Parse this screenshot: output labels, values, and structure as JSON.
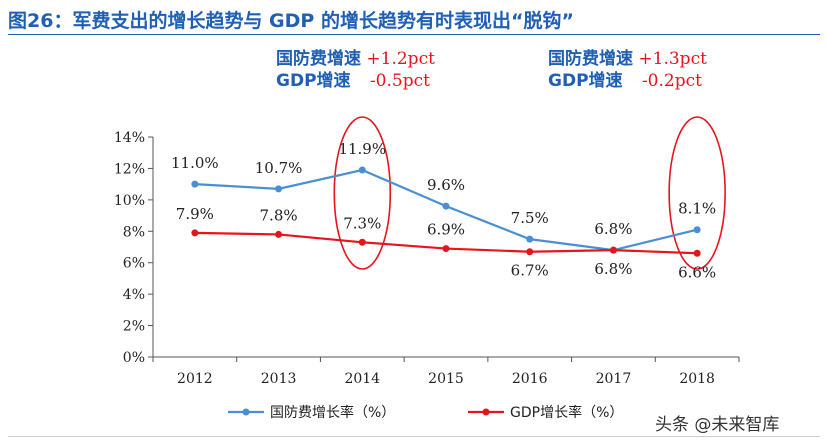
{
  "title": "图26：军费支出的增长趋势与 GDP 的增长趋势有时表现出“脱钩”",
  "annotations": [
    {
      "line1_label": "国防费增速",
      "line1_value": "+1.2pct",
      "line2_label": "GDP增速",
      "line2_value": "-0.5pct"
    },
    {
      "line1_label": "国防费增速",
      "line1_value": "+1.3pct",
      "line2_label": "GDP增速",
      "line2_value": "-0.2pct"
    }
  ],
  "watermark": "头条 @未来智库",
  "chart_data": {
    "type": "line",
    "categories": [
      "2012",
      "2013",
      "2014",
      "2015",
      "2016",
      "2017",
      "2018"
    ],
    "ylim": [
      0,
      14
    ],
    "y_ticks": [
      "0%",
      "2%",
      "4%",
      "6%",
      "8%",
      "10%",
      "12%",
      "14%"
    ],
    "grid": false,
    "legend_position": "bottom",
    "series": [
      {
        "name": "国防费增长率（%）",
        "color": "#4a8fd4",
        "values": [
          11.0,
          10.7,
          11.9,
          9.6,
          7.5,
          6.8,
          8.1
        ],
        "labels": [
          "11.0%",
          "10.7%",
          "11.9%",
          "9.6%",
          "7.5%",
          "6.8%",
          "8.1%"
        ]
      },
      {
        "name": "GDP增长率（%）",
        "color": "#e8141c",
        "values": [
          7.9,
          7.8,
          7.3,
          6.9,
          6.7,
          6.8,
          6.6
        ],
        "labels": [
          "7.9%",
          "7.8%",
          "7.3%",
          "6.9%",
          "6.7%",
          "6.8%",
          "6.6%"
        ]
      }
    ],
    "highlight_categories": [
      "2014",
      "2018"
    ]
  }
}
